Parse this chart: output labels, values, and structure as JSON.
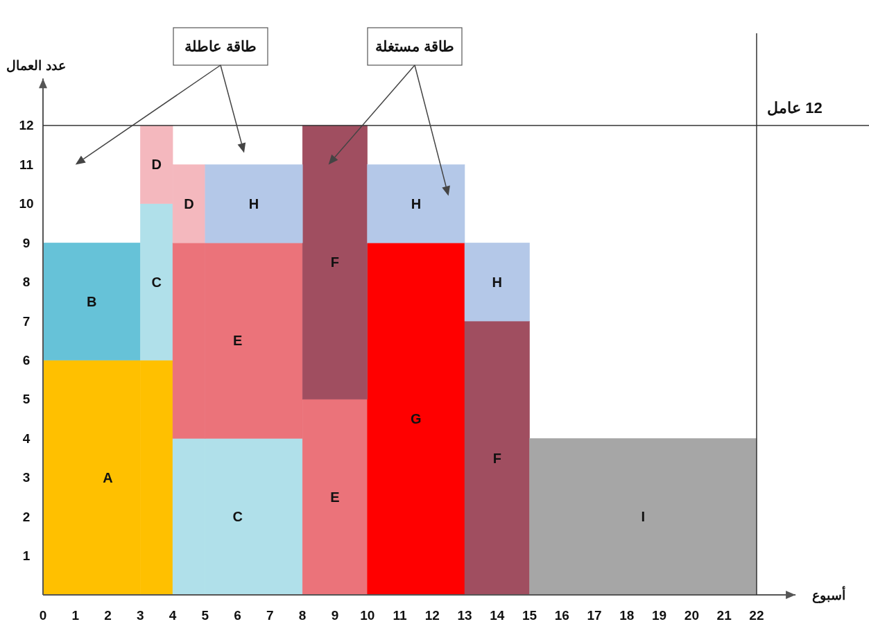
{
  "chart_data": {
    "type": "bar",
    "stacked": true,
    "xlabel": "أسبوع",
    "ylabel": "عدد العمال",
    "x": [
      1.5,
      3.5,
      4.5,
      6.5,
      9,
      11.5,
      14,
      18.5
    ],
    "xlim": [
      0,
      23.2
    ],
    "xticks": [
      0,
      1,
      2,
      3,
      4,
      5,
      6,
      7,
      8,
      9,
      10,
      11,
      12,
      13,
      14,
      15,
      16,
      17,
      18,
      19,
      20,
      21,
      22
    ],
    "ylim": [
      0,
      13.2
    ],
    "yticks": [
      1,
      2,
      3,
      4,
      5,
      6,
      7,
      8,
      9,
      10,
      11,
      12
    ],
    "series": [
      {
        "name": "A",
        "color": "#ffc000",
        "values": [
          6,
          6,
          null,
          null,
          null,
          null,
          null,
          null
        ]
      },
      {
        "name": "B",
        "color": "#66c2d8",
        "values": [
          3,
          null,
          null,
          null,
          null,
          null,
          null,
          null
        ]
      },
      {
        "name": "C",
        "color": "#b0e0ea",
        "values": [
          null,
          4,
          4,
          4,
          null,
          null,
          null,
          null
        ]
      },
      {
        "name": "E",
        "color": "#eb737a",
        "values": [
          null,
          null,
          5,
          5,
          5,
          null,
          null,
          null
        ]
      },
      {
        "name": "G",
        "color": "#ff0000",
        "values": [
          null,
          null,
          null,
          null,
          null,
          9,
          null,
          null
        ]
      },
      {
        "name": "F",
        "color": "#a04e60",
        "values": [
          null,
          null,
          null,
          null,
          7,
          null,
          7,
          null
        ]
      },
      {
        "name": "D",
        "color": "#f4b8be",
        "values": [
          null,
          2,
          2,
          null,
          null,
          null,
          null,
          null
        ]
      },
      {
        "name": "H",
        "color": "#b4c8e8",
        "values": [
          null,
          null,
          null,
          2,
          null,
          2,
          2,
          null
        ]
      },
      {
        "name": "I",
        "color": "#a6a6a6",
        "values": [
          null,
          null,
          null,
          null,
          null,
          null,
          null,
          4
        ]
      }
    ],
    "ref_lines": [
      {
        "axis": "y",
        "value": 12,
        "label": "12 عامل",
        "color": "#333333"
      },
      {
        "axis": "x",
        "value": 22,
        "color": "#333333"
      }
    ],
    "annotations": [
      "طاقة عاطلة",
      "طاقة مستغلة"
    ],
    "grid": false,
    "legend": false
  }
}
